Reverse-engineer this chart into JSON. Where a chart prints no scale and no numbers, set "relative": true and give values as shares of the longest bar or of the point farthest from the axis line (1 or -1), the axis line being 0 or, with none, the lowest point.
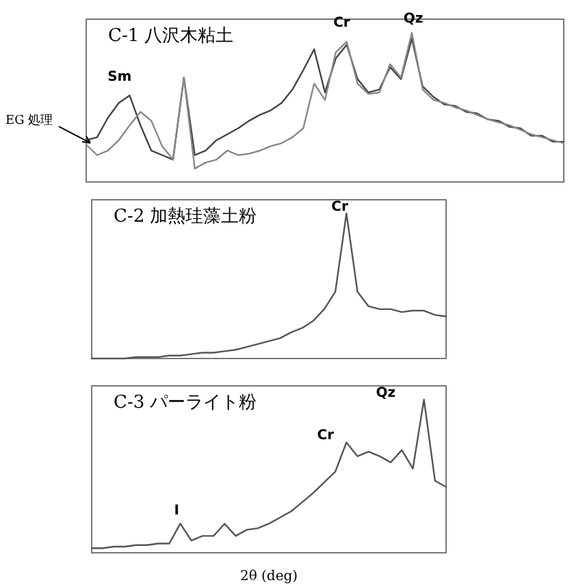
{
  "chart_data": [
    {
      "type": "line",
      "title": "C-1 八沢木粘土",
      "relative": true,
      "categories": [
        null,
        null,
        null,
        null,
        null,
        null,
        null,
        null,
        null,
        null,
        null,
        null,
        null,
        null,
        null,
        null,
        null,
        null,
        null,
        null,
        null,
        null,
        null,
        null,
        null,
        null,
        null,
        null,
        null,
        null,
        null,
        null,
        null,
        null,
        null,
        null,
        null,
        null,
        null,
        null,
        null,
        null,
        null,
        null,
        null
      ],
      "series": [
        {
          "name": "EG 処理",
          "color": "#444444",
          "values": [
            0.28,
            0.3,
            0.43,
            0.53,
            0.58,
            0.38,
            0.21,
            0.18,
            0.15,
            0.7,
            0.18,
            0.21,
            0.28,
            0.32,
            0.36,
            0.41,
            0.45,
            0.48,
            0.53,
            0.62,
            0.75,
            0.89,
            0.6,
            0.83,
            0.92,
            0.69,
            0.6,
            0.62,
            0.77,
            0.69,
            0.96,
            0.64,
            0.57,
            0.52,
            0.51,
            0.47,
            0.46,
            0.42,
            0.41,
            0.37,
            0.36,
            0.31,
            0.31,
            0.27,
            0.27
          ]
        },
        {
          "color": "#888888",
          "values": [
            0.25,
            0.18,
            0.21,
            0.28,
            0.38,
            0.47,
            0.41,
            0.24,
            0.15,
            0.7,
            0.09,
            0.13,
            0.15,
            0.21,
            0.18,
            0.19,
            0.21,
            0.24,
            0.26,
            0.3,
            0.36,
            0.66,
            0.55,
            0.87,
            0.94,
            0.66,
            0.59,
            0.6,
            0.79,
            0.7,
            1,
            0.62,
            0.55,
            0.53,
            0.5,
            0.48,
            0.45,
            0.42,
            0.4,
            0.38,
            0.35,
            0.32,
            0.3,
            0.28,
            0.26
          ]
        }
      ],
      "annotations": [
        "Sm",
        "Cr",
        "Qz"
      ]
    },
    {
      "type": "line",
      "title": "C-2 加熱珪藻土粉",
      "relative": true,
      "categories": [
        null,
        null,
        null,
        null,
        null,
        null,
        null,
        null,
        null,
        null,
        null,
        null,
        null,
        null,
        null,
        null,
        null,
        null,
        null,
        null,
        null,
        null,
        null,
        null,
        null,
        null,
        null,
        null,
        null,
        null,
        null,
        null,
        null
      ],
      "series": [
        {
          "color": "#555555",
          "values": [
            0,
            0,
            0,
            0,
            0.01,
            0.01,
            0.01,
            0.02,
            0.02,
            0.03,
            0.04,
            0.04,
            0.05,
            0.06,
            0.08,
            0.1,
            0.12,
            0.14,
            0.18,
            0.21,
            0.26,
            0.34,
            0.46,
            1,
            0.46,
            0.36,
            0.34,
            0.34,
            0.32,
            0.33,
            0.33,
            0.3,
            0.29
          ]
        }
      ],
      "annotations": [
        "Cr"
      ]
    },
    {
      "type": "line",
      "title": "C-3 パーライト粉",
      "relative": true,
      "xlabel": "2θ (deg)",
      "categories": [
        null,
        null,
        null,
        null,
        null,
        null,
        null,
        null,
        null,
        null,
        null,
        null,
        null,
        null,
        null,
        null,
        null,
        null,
        null,
        null,
        null,
        null,
        null,
        null,
        null,
        null,
        null,
        null,
        null,
        null,
        null,
        null,
        null
      ],
      "series": [
        {
          "color": "#555555",
          "values": [
            0.03,
            0.03,
            0.04,
            0.04,
            0.05,
            0.05,
            0.06,
            0.06,
            0.19,
            0.08,
            0.11,
            0.11,
            0.19,
            0.11,
            0.15,
            0.16,
            0.19,
            0.23,
            0.27,
            0.33,
            0.39,
            0.46,
            0.53,
            0.72,
            0.63,
            0.66,
            0.63,
            0.59,
            0.67,
            0.55,
            1,
            0.47,
            0.43
          ]
        }
      ],
      "annotations": [
        "I",
        "Cr",
        "Qz"
      ]
    }
  ]
}
